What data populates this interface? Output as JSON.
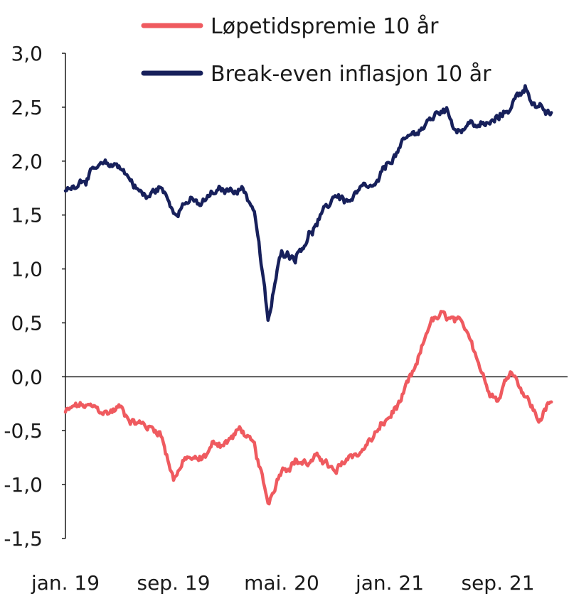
{
  "chart_data": {
    "type": "line",
    "title": "",
    "xlabel": "",
    "ylabel": "",
    "ylim": [
      -1.5,
      3.0
    ],
    "yticks": [
      "3,0",
      "2,5",
      "2,0",
      "1,5",
      "1,0",
      "0,5",
      "0,0",
      "-0,5",
      "-1,0",
      "-1,5"
    ],
    "ytick_values": [
      3.0,
      2.5,
      2.0,
      1.5,
      1.0,
      0.5,
      0.0,
      -0.5,
      -1.0,
      -1.5
    ],
    "x_range": [
      "2019-01",
      "2021-12"
    ],
    "xticks": [
      {
        "label": "jan. 19",
        "date": "2019-01"
      },
      {
        "label": "sep. 19",
        "date": "2019-09"
      },
      {
        "label": "mai. 20",
        "date": "2020-05"
      },
      {
        "label": "jan. 21",
        "date": "2021-01"
      },
      {
        "label": "sep. 21",
        "date": "2021-09"
      }
    ],
    "grid": false,
    "zero_line": true,
    "legend_position": "top",
    "series": [
      {
        "name": "Løpetidspremie 10 år",
        "color": "#ef5a5f",
        "points": [
          [
            "2019-01",
            -0.33
          ],
          [
            "2019-02",
            -0.27
          ],
          [
            "2019-03",
            -0.3
          ],
          [
            "2019-04",
            -0.34
          ],
          [
            "2019-05",
            -0.28
          ],
          [
            "2019-06",
            -0.4
          ],
          [
            "2019-07",
            -0.46
          ],
          [
            "2019-08",
            -0.5
          ],
          [
            "2019-09",
            -0.93
          ],
          [
            "2019-10",
            -0.76
          ],
          [
            "2019-11",
            -0.78
          ],
          [
            "2019-12",
            -0.62
          ],
          [
            "2020-01",
            -0.6
          ],
          [
            "2020-02",
            -0.48
          ],
          [
            "2020-03",
            -0.68
          ],
          [
            "2020-04",
            -1.18
          ],
          [
            "2020-05",
            -0.83
          ],
          [
            "2020-06",
            -0.77
          ],
          [
            "2020-07",
            -0.8
          ],
          [
            "2020-08",
            -0.75
          ],
          [
            "2020-09",
            -0.92
          ],
          [
            "2020-10",
            -0.74
          ],
          [
            "2020-11",
            -0.68
          ],
          [
            "2020-12",
            -0.52
          ],
          [
            "2021-01",
            -0.38
          ],
          [
            "2021-02",
            -0.18
          ],
          [
            "2021-03",
            0.08
          ],
          [
            "2021-04",
            0.52
          ],
          [
            "2021-05",
            0.55
          ],
          [
            "2021-06",
            0.48
          ],
          [
            "2021-07",
            0.38
          ],
          [
            "2021-08",
            -0.02
          ],
          [
            "2021-09",
            -0.2
          ],
          [
            "2021-10",
            0.08
          ],
          [
            "2021-11",
            -0.15
          ],
          [
            "2021-12",
            -0.4
          ],
          [
            "2022-01",
            -0.23
          ]
        ]
      },
      {
        "name": "Break-even inflasjon 10 år",
        "color": "#17205b",
        "points": [
          [
            "2019-01",
            1.71
          ],
          [
            "2019-02",
            1.83
          ],
          [
            "2019-03",
            1.9
          ],
          [
            "2019-04",
            1.94
          ],
          [
            "2019-05",
            1.97
          ],
          [
            "2019-06",
            1.8
          ],
          [
            "2019-07",
            1.65
          ],
          [
            "2019-08",
            1.76
          ],
          [
            "2019-09",
            1.55
          ],
          [
            "2019-10",
            1.64
          ],
          [
            "2019-11",
            1.58
          ],
          [
            "2019-12",
            1.7
          ],
          [
            "2020-01",
            1.72
          ],
          [
            "2020-02",
            1.77
          ],
          [
            "2020-03",
            1.55
          ],
          [
            "2020-04",
            0.5
          ],
          [
            "2020-05",
            1.17
          ],
          [
            "2020-06",
            1.13
          ],
          [
            "2020-07",
            1.32
          ],
          [
            "2020-08",
            1.48
          ],
          [
            "2020-09",
            1.7
          ],
          [
            "2020-10",
            1.62
          ],
          [
            "2020-11",
            1.72
          ],
          [
            "2020-12",
            1.75
          ],
          [
            "2021-01",
            2.0
          ],
          [
            "2021-02",
            2.15
          ],
          [
            "2021-03",
            2.28
          ],
          [
            "2021-04",
            2.37
          ],
          [
            "2021-05",
            2.5
          ],
          [
            "2021-06",
            2.3
          ],
          [
            "2021-07",
            2.35
          ],
          [
            "2021-08",
            2.32
          ],
          [
            "2021-09",
            2.38
          ],
          [
            "2021-10",
            2.52
          ],
          [
            "2021-11",
            2.7
          ],
          [
            "2021-12",
            2.48
          ],
          [
            "2022-01",
            2.4
          ]
        ]
      }
    ]
  }
}
